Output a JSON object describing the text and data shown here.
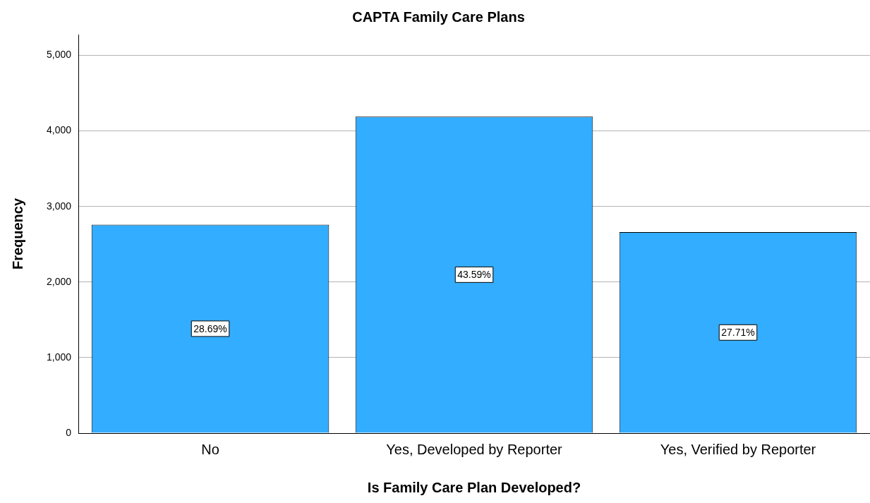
{
  "chart_data": {
    "type": "bar",
    "title": "CAPTA Family Care Plans",
    "xlabel": "Is Family Care Plan Developed?",
    "ylabel": "Frequency",
    "categories": [
      "No",
      "Yes, Developed by Reporter",
      "Yes, Verified by Reporter"
    ],
    "values": [
      2760,
      4190,
      2660
    ],
    "color": "#33adff",
    "annotations": [
      "28.69%",
      "43.59%",
      "27.71%"
    ],
    "ylim": [
      0,
      5275
    ],
    "yticks": [
      0,
      {
        "value": 1000,
        "label": "1,000"
      },
      {
        "value": 2000,
        "label": "2,000"
      },
      {
        "value": 3000,
        "label": "3,000"
      },
      {
        "value": 4000,
        "label": "4,000"
      },
      {
        "value": 5000,
        "label": "5,000"
      }
    ],
    "grid": "y",
    "legend": false
  }
}
